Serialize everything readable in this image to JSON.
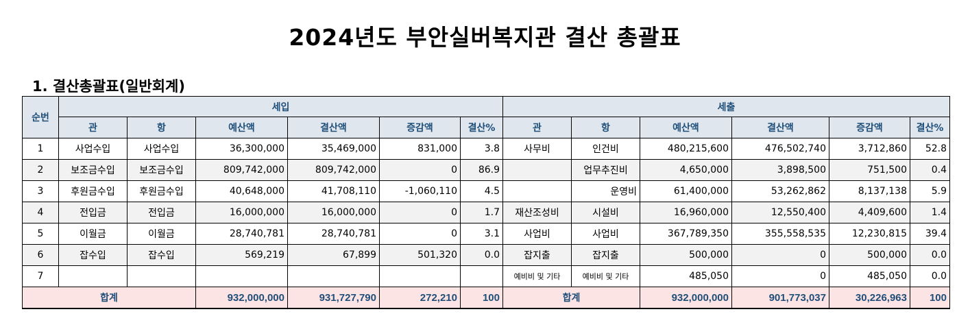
{
  "title": "2024년도 부안실버복지관 결산 총괄표",
  "section_title": "1. 결산총괄표(일반회계)",
  "headers": {
    "seq": "순번",
    "income": "세입",
    "expense": "세출",
    "gwan": "관",
    "hang": "항",
    "budget": "예산액",
    "settle": "결산액",
    "diff": "증감액",
    "rate": "결산%"
  },
  "rows": [
    {
      "seq": "1",
      "in_gwan": "사업수입",
      "in_hang": "사업수입",
      "in_budget": "36,300,000",
      "in_settle": "35,469,000",
      "in_diff": "831,000",
      "in_rate": "3.8",
      "ex_gwan": "사무비",
      "ex_hang": "인건비",
      "ex_budget": "480,215,600",
      "ex_settle": "476,502,740",
      "ex_diff": "3,712,860",
      "ex_rate": "52.8"
    },
    {
      "seq": "2",
      "in_gwan": "보조금수입",
      "in_hang": "보조금수입",
      "in_budget": "809,742,000",
      "in_settle": "809,742,000",
      "in_diff": "0",
      "in_rate": "86.9",
      "ex_gwan": "",
      "ex_hang": "업무추진비",
      "ex_budget": "4,650,000",
      "ex_settle": "3,898,500",
      "ex_diff": "751,500",
      "ex_rate": "0.4"
    },
    {
      "seq": "3",
      "in_gwan": "후원금수입",
      "in_hang": "후원금수입",
      "in_budget": "40,648,000",
      "in_settle": "41,708,110",
      "in_diff": "-1,060,110",
      "in_rate": "4.5",
      "ex_gwan": "",
      "ex_hang": "운영비",
      "ex_budget": "61,400,000",
      "ex_settle": "53,262,862",
      "ex_diff": "8,137,138",
      "ex_rate": "5.9"
    },
    {
      "seq": "4",
      "in_gwan": "전입금",
      "in_hang": "전입금",
      "in_budget": "16,000,000",
      "in_settle": "16,000,000",
      "in_diff": "0",
      "in_rate": "1.7",
      "ex_gwan": "재산조성비",
      "ex_hang": "시설비",
      "ex_budget": "16,960,000",
      "ex_settle": "12,550,400",
      "ex_diff": "4,409,600",
      "ex_rate": "1.4"
    },
    {
      "seq": "5",
      "in_gwan": "이월금",
      "in_hang": "이월금",
      "in_budget": "28,740,781",
      "in_settle": "28,740,781",
      "in_diff": "0",
      "in_rate": "3.1",
      "ex_gwan": "사업비",
      "ex_hang": "사업비",
      "ex_budget": "367,789,350",
      "ex_settle": "355,558,535",
      "ex_diff": "12,230,815",
      "ex_rate": "39.4"
    },
    {
      "seq": "6",
      "in_gwan": "잡수입",
      "in_hang": "잡수입",
      "in_budget": "569,219",
      "in_settle": "67,899",
      "in_diff": "501,320",
      "in_rate": "0.0",
      "ex_gwan": "잡지출",
      "ex_hang": "잡지출",
      "ex_budget": "500,000",
      "ex_settle": "0",
      "ex_diff": "500,000",
      "ex_rate": "0.0"
    },
    {
      "seq": "7",
      "in_gwan": "",
      "in_hang": "",
      "in_budget": "",
      "in_settle": "",
      "in_diff": "",
      "in_rate": "",
      "ex_gwan": "예비비 및 기타",
      "ex_hang": "예비비 및 기타",
      "ex_budget": "485,050",
      "ex_settle": "0",
      "ex_diff": "485,050",
      "ex_rate": "0.0"
    }
  ],
  "total": {
    "label_in": "합계",
    "in_budget": "932,000,000",
    "in_settle": "931,727,790",
    "in_diff": "272,210",
    "in_rate": "100",
    "label_ex": "합계",
    "ex_budget": "932,000,000",
    "ex_settle": "901,773,037",
    "ex_diff": "30,226,963",
    "ex_rate": "100"
  },
  "colors": {
    "header_bg": "#dfe6ee",
    "header_text": "#1f4e79",
    "total_bg": "#fce4e4",
    "alt_row_bg": "#f2f2f2"
  }
}
